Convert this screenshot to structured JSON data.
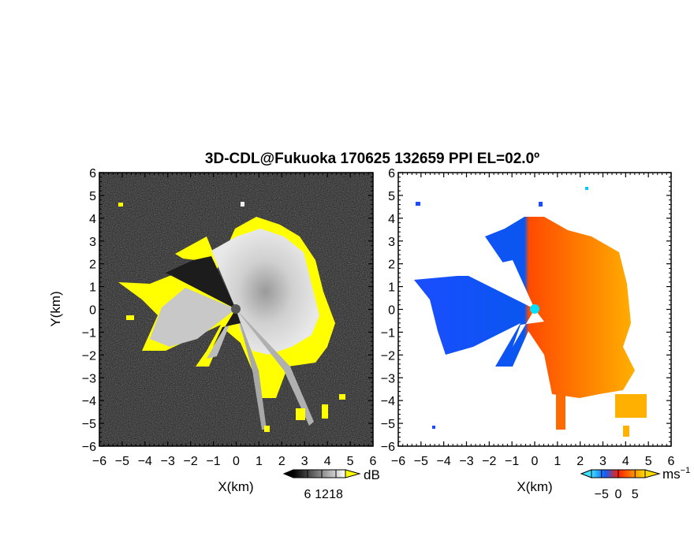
{
  "chart_data": [
    {
      "type": "heatmap",
      "panel": "left",
      "title": "3D-CDL@Fukuoka 170625 132659 PPI EL=02.0º",
      "xlabel": "X(km)",
      "ylabel": "Y(km)",
      "xlim": [
        -6,
        6
      ],
      "ylim": [
        -6,
        6
      ],
      "x_ticks": [
        "−6",
        "−5",
        "−4",
        "−3",
        "−2",
        "−1",
        "0",
        "1",
        "2",
        "3",
        "4",
        "5",
        "6"
      ],
      "y_ticks": [
        "6",
        "5",
        "4",
        "3",
        "2",
        "1",
        "0",
        "−1",
        "−2",
        "−3",
        "−4",
        "−5",
        "−6"
      ],
      "colorbar": {
        "unit": "dB",
        "ticks": [
          "6",
          "12",
          "18"
        ],
        "range": [
          0,
          22
        ],
        "colors": [
          "#000000",
          "#ffffff"
        ],
        "high_color": "#ffff00"
      },
      "grid": false
    },
    {
      "type": "heatmap",
      "panel": "right",
      "xlabel": "X(km)",
      "xlim": [
        -6,
        6
      ],
      "ylim": [
        -6,
        6
      ],
      "x_ticks": [
        "−6",
        "−5",
        "−4",
        "−3",
        "−2",
        "−1",
        "0",
        "1",
        "2",
        "3",
        "4",
        "5",
        "6"
      ],
      "y_ticks": [
        "6",
        "5",
        "4",
        "3",
        "2",
        "1",
        "0",
        "−1",
        "−2",
        "−3",
        "−4",
        "−5",
        "−6"
      ],
      "colorbar": {
        "unit": "ms",
        "unit_sup": "−1",
        "ticks": [
          "−5",
          "0",
          "5"
        ],
        "range": [
          -8,
          8
        ],
        "colors": [
          "#0000ff",
          "#00c8ff",
          "#ff0000",
          "#ffaa00"
        ]
      },
      "grid": false
    }
  ]
}
